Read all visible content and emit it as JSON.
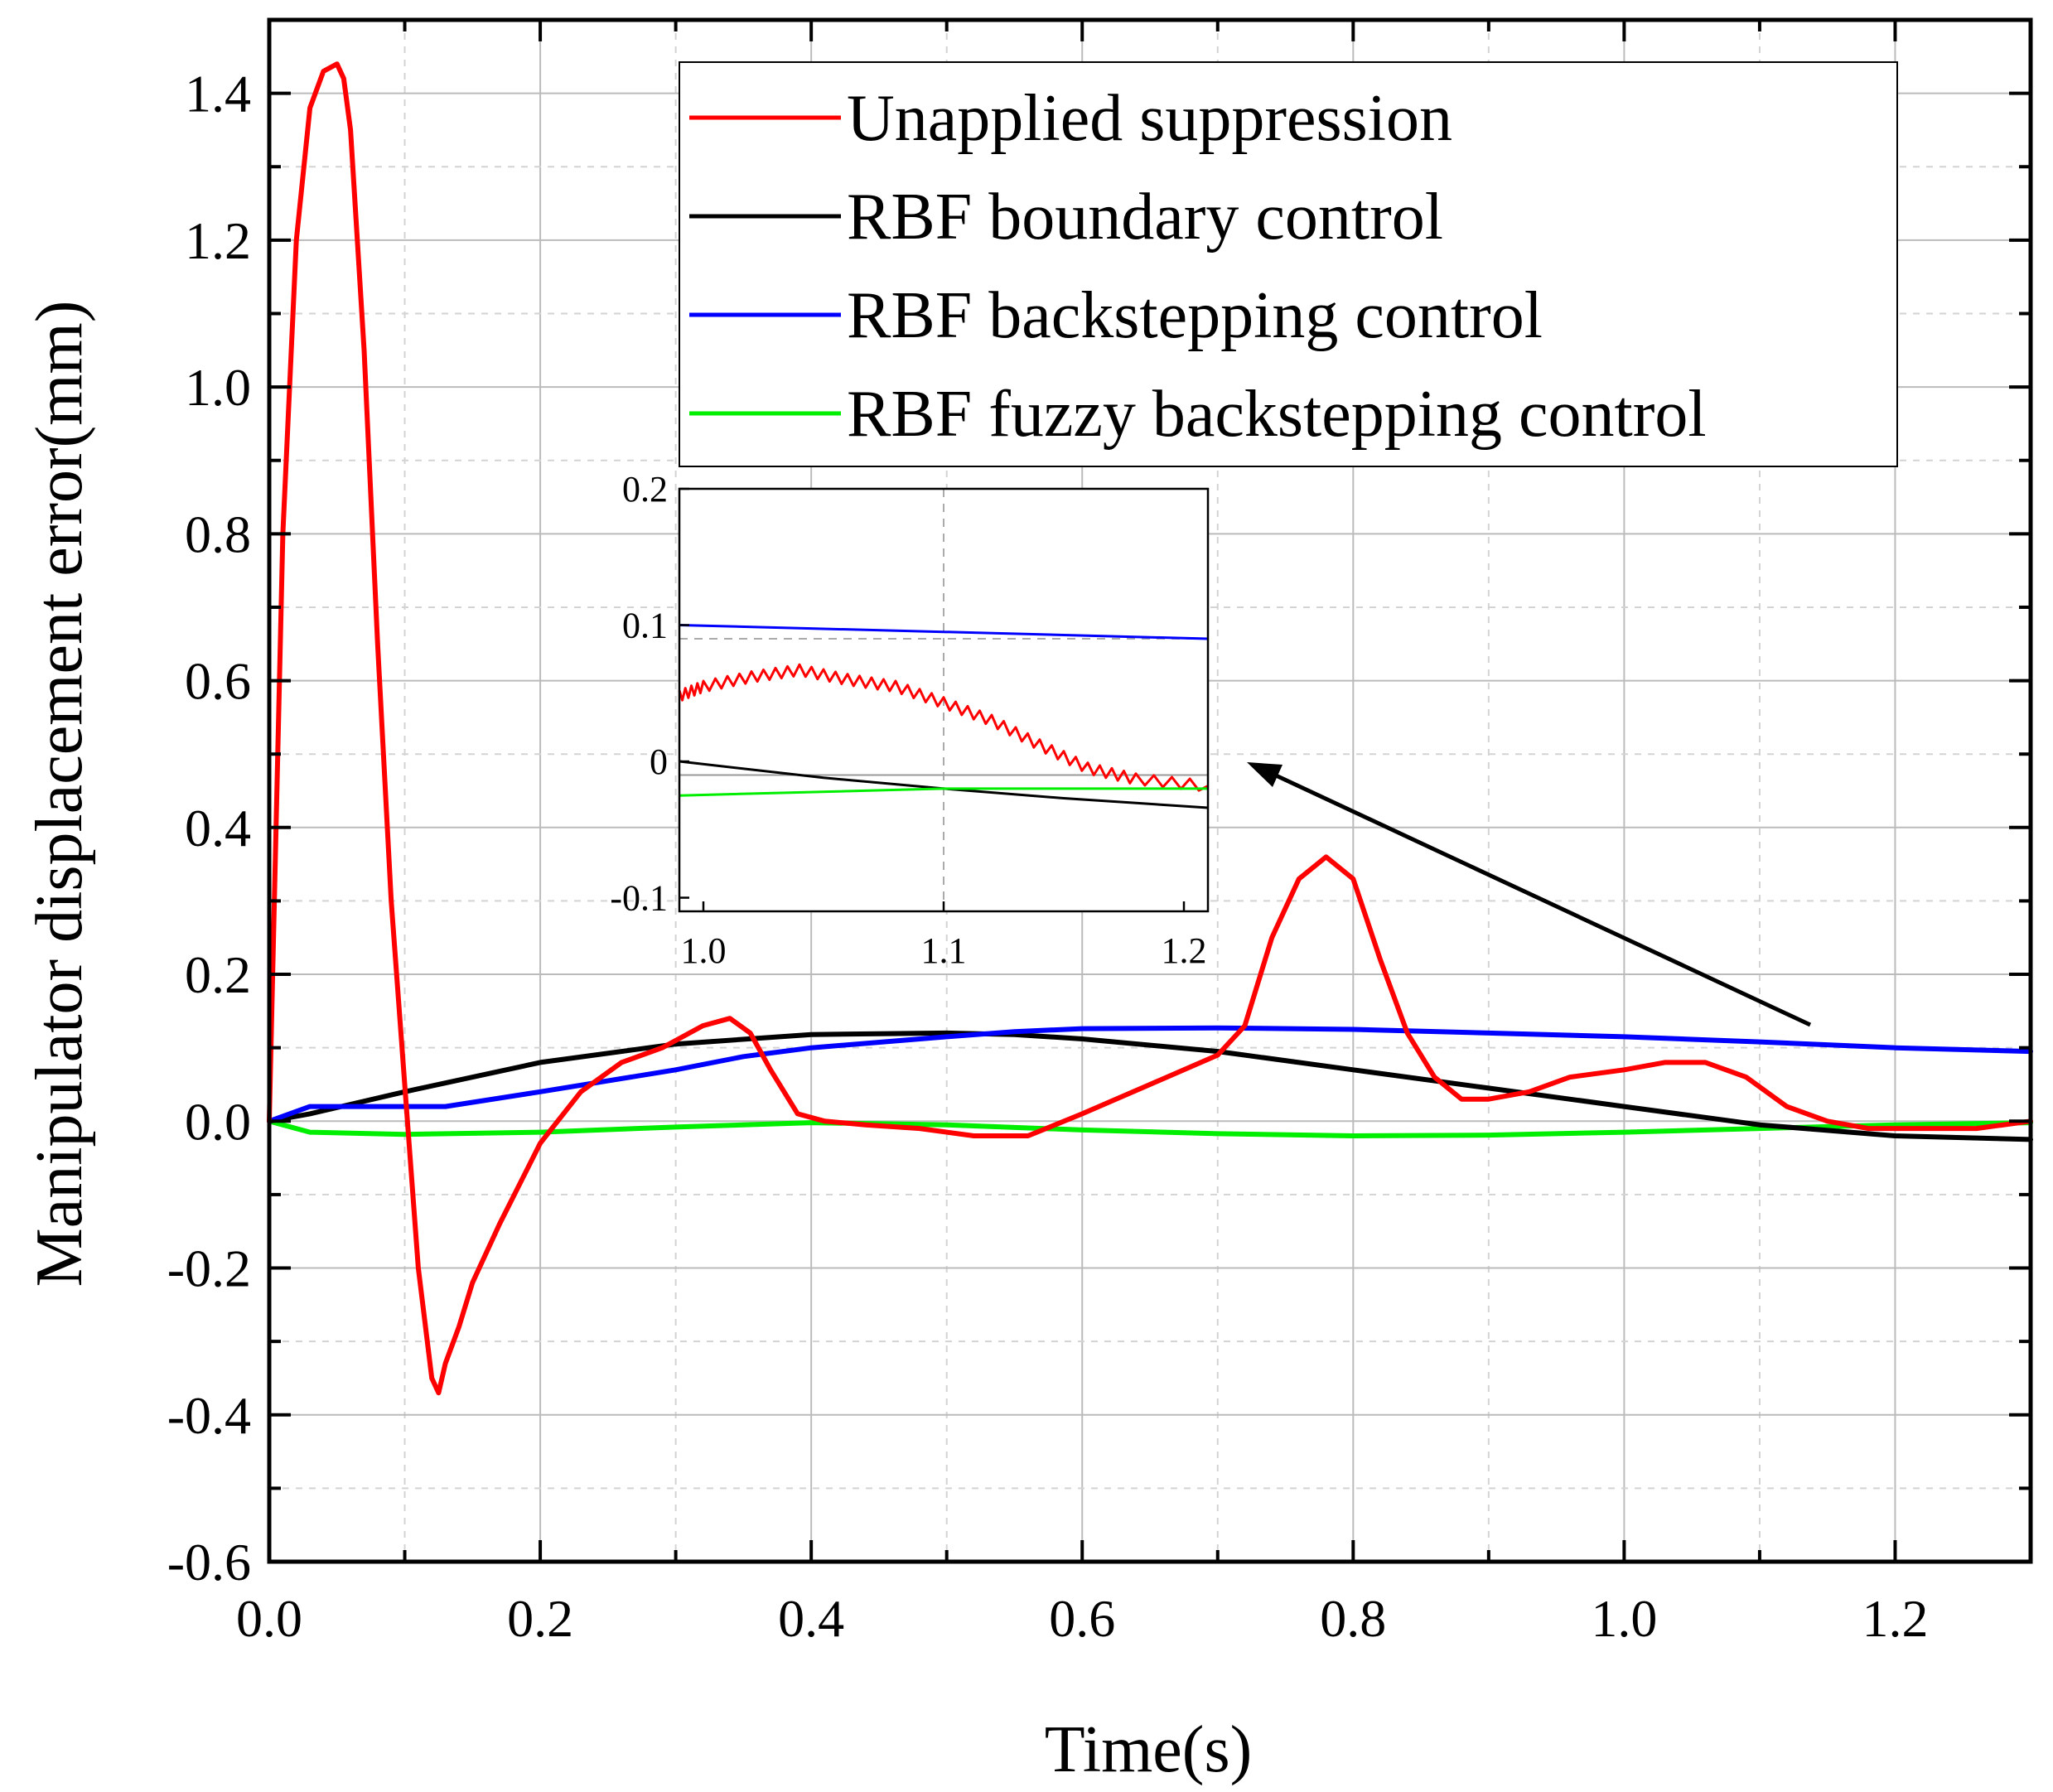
{
  "chart_data": {
    "type": "line",
    "xlabel": "Time(s)",
    "ylabel": "Manipulator displacement error(mm)",
    "xlim": [
      0,
      1.3
    ],
    "ylim": [
      -0.6,
      1.5
    ],
    "grid": true,
    "legend_position": "top-right",
    "x_ticks": [
      "0.0",
      "0.2",
      "0.4",
      "0.6",
      "0.8",
      "1.0",
      "1.2"
    ],
    "y_ticks": [
      "-0.6",
      "-0.4",
      "-0.2",
      "0.0",
      "0.2",
      "0.4",
      "0.6",
      "0.8",
      "1.0",
      "1.2",
      "1.4"
    ],
    "series": [
      {
        "name": "Unapplied suppression",
        "color": "#ff0000",
        "x": [
          0,
          0.01,
          0.02,
          0.03,
          0.04,
          0.05,
          0.055,
          0.06,
          0.07,
          0.08,
          0.09,
          0.1,
          0.11,
          0.12,
          0.125,
          0.13,
          0.14,
          0.15,
          0.17,
          0.2,
          0.23,
          0.26,
          0.29,
          0.32,
          0.34,
          0.355,
          0.37,
          0.39,
          0.41,
          0.44,
          0.48,
          0.52,
          0.54,
          0.56,
          0.6,
          0.65,
          0.7,
          0.72,
          0.74,
          0.76,
          0.78,
          0.8,
          0.82,
          0.84,
          0.86,
          0.88,
          0.9,
          0.93,
          0.96,
          1.0,
          1.03,
          1.06,
          1.09,
          1.12,
          1.15,
          1.18,
          1.22,
          1.26,
          1.3
        ],
        "y": [
          0,
          0.8,
          1.2,
          1.38,
          1.43,
          1.44,
          1.42,
          1.35,
          1.05,
          0.65,
          0.3,
          0.05,
          -0.2,
          -0.35,
          -0.37,
          -0.33,
          -0.28,
          -0.22,
          -0.14,
          -0.03,
          0.04,
          0.08,
          0.1,
          0.13,
          0.14,
          0.12,
          0.07,
          0.01,
          0.0,
          -0.005,
          -0.01,
          -0.02,
          -0.02,
          -0.02,
          0.01,
          0.05,
          0.09,
          0.13,
          0.25,
          0.33,
          0.36,
          0.33,
          0.22,
          0.12,
          0.06,
          0.03,
          0.03,
          0.04,
          0.06,
          0.07,
          0.08,
          0.08,
          0.06,
          0.02,
          0.0,
          -0.01,
          -0.01,
          -0.01,
          0.0
        ]
      },
      {
        "name": "RBF boundary control",
        "color": "#000000",
        "x": [
          0,
          0.03,
          0.1,
          0.2,
          0.3,
          0.4,
          0.5,
          0.55,
          0.6,
          0.7,
          0.8,
          0.9,
          1.0,
          1.1,
          1.2,
          1.3
        ],
        "y": [
          0,
          0.01,
          0.04,
          0.08,
          0.105,
          0.118,
          0.12,
          0.118,
          0.112,
          0.095,
          0.07,
          0.045,
          0.02,
          -0.005,
          -0.02,
          -0.025
        ]
      },
      {
        "name": "RBF backstepping control",
        "color": "#0000ff",
        "x": [
          0,
          0.03,
          0.13,
          0.2,
          0.3,
          0.35,
          0.4,
          0.5,
          0.55,
          0.6,
          0.7,
          0.8,
          0.9,
          1.0,
          1.1,
          1.2,
          1.3
        ],
        "y": [
          0,
          0.02,
          0.02,
          0.04,
          0.07,
          0.088,
          0.1,
          0.115,
          0.122,
          0.126,
          0.127,
          0.125,
          0.12,
          0.115,
          0.108,
          0.1,
          0.095
        ]
      },
      {
        "name": "RBF fuzzy backstepping control",
        "color": "#00ee00",
        "x": [
          0,
          0.03,
          0.1,
          0.2,
          0.3,
          0.4,
          0.5,
          0.6,
          0.7,
          0.8,
          0.9,
          1.0,
          1.1,
          1.2,
          1.3
        ],
        "y": [
          0,
          -0.015,
          -0.018,
          -0.015,
          -0.008,
          -0.002,
          -0.005,
          -0.012,
          -0.017,
          -0.02,
          -0.019,
          -0.015,
          -0.01,
          -0.005,
          -0.002
        ]
      }
    ],
    "inset": {
      "xlim": [
        0.99,
        1.21
      ],
      "ylim": [
        -0.11,
        0.2
      ],
      "x_ticks": [
        "1.0",
        "1.1",
        "1.2"
      ],
      "y_ticks": [
        "-0.1",
        "0",
        "0.1",
        "0.2"
      ],
      "series": [
        {
          "color": "#0000ff",
          "x": [
            0.99,
            1.1,
            1.21
          ],
          "y": [
            0.1,
            0.095,
            0.09
          ]
        },
        {
          "color": "#ff0000",
          "x": [
            0.99,
            1.0,
            1.02,
            1.04,
            1.06,
            1.08,
            1.1,
            1.12,
            1.14,
            1.16,
            1.18,
            1.21
          ],
          "y": [
            0.048,
            0.055,
            0.062,
            0.067,
            0.06,
            0.055,
            0.043,
            0.03,
            0.012,
            -0.005,
            -0.013,
            -0.018
          ]
        },
        {
          "color": "#000000",
          "x": [
            0.99,
            1.05,
            1.1,
            1.15,
            1.21
          ],
          "y": [
            0.0,
            -0.012,
            -0.02,
            -0.027,
            -0.034
          ]
        },
        {
          "color": "#00ee00",
          "x": [
            0.99,
            1.1,
            1.21
          ],
          "y": [
            -0.025,
            -0.02,
            -0.02
          ]
        }
      ]
    }
  }
}
